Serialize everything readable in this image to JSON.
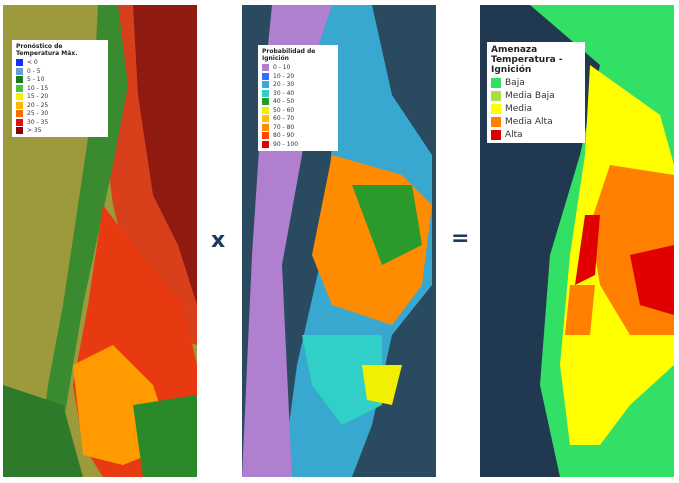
{
  "panels": [
    {
      "legend": {
        "title": "Pronóstico de Temperatura Máx.",
        "items": [
          {
            "label": "< 0",
            "color": "#1030ff"
          },
          {
            "label": "0 - 5",
            "color": "#6a9ad8"
          },
          {
            "label": "5 - 10",
            "color": "#1a7a1a"
          },
          {
            "label": "10 - 15",
            "color": "#48c040"
          },
          {
            "label": "15 - 20",
            "color": "#f4f000"
          },
          {
            "label": "20 - 25",
            "color": "#ffb400"
          },
          {
            "label": "25 - 30",
            "color": "#ff6a00"
          },
          {
            "label": "30 - 35",
            "color": "#e01010"
          },
          {
            "label": "> 35",
            "color": "#8b0000"
          }
        ]
      }
    },
    {
      "legend": {
        "title": "Probabilidad de Ignición",
        "items": [
          {
            "label": "0 - 10",
            "color": "#b07fd0"
          },
          {
            "label": "10 - 20",
            "color": "#3070ff"
          },
          {
            "label": "20 - 30",
            "color": "#38a8e0"
          },
          {
            "label": "30 - 40",
            "color": "#30d0c8"
          },
          {
            "label": "40 - 50",
            "color": "#2a9a2a"
          },
          {
            "label": "50 - 60",
            "color": "#f0f000"
          },
          {
            "label": "60 - 70",
            "color": "#ffc000"
          },
          {
            "label": "70 - 80",
            "color": "#ff8c00"
          },
          {
            "label": "80 - 90",
            "color": "#ff4500"
          },
          {
            "label": "90 - 100",
            "color": "#e00000"
          }
        ]
      }
    },
    {
      "legend": {
        "title": "Amenaza Temperatura - Ignición",
        "items": [
          {
            "label": "Baja",
            "color": "#33e066"
          },
          {
            "label": "Media Baja",
            "color": "#a8e040"
          },
          {
            "label": "Media",
            "color": "#ffff00"
          },
          {
            "label": "Media Alta",
            "color": "#ff7f00"
          },
          {
            "label": "Alta",
            "color": "#e00000"
          }
        ]
      }
    }
  ],
  "operators": [
    "x",
    "="
  ]
}
